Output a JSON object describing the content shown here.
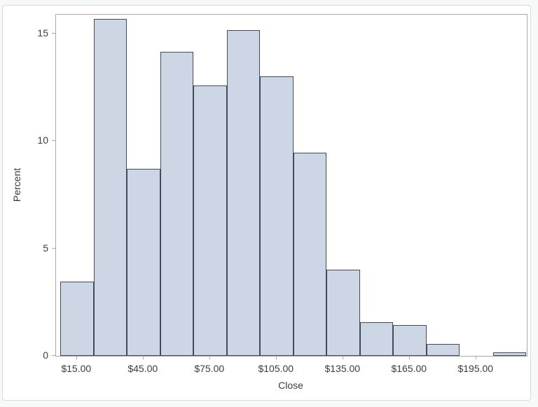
{
  "chart_data": {
    "type": "bar",
    "subtype": "histogram",
    "title": "",
    "xlabel": "Close",
    "ylabel": "Percent",
    "bin_width": 15,
    "bin_centers": [
      15,
      30,
      45,
      60,
      75,
      90,
      105,
      120,
      135,
      150,
      165,
      180,
      195,
      210
    ],
    "values": [
      3.45,
      15.7,
      8.7,
      14.15,
      12.6,
      15.15,
      13.0,
      9.45,
      4.0,
      1.55,
      1.45,
      0.55,
      0,
      0.15
    ],
    "x_tick_values": [
      15,
      45,
      75,
      105,
      135,
      165,
      195
    ],
    "x_tick_labels": [
      "$15.00",
      "$45.00",
      "$75.00",
      "$105.00",
      "$135.00",
      "$165.00",
      "$195.00"
    ],
    "y_tick_values": [
      0,
      5,
      10,
      15
    ],
    "y_tick_labels": [
      "0",
      "5",
      "10",
      "15"
    ],
    "xlim": [
      5.6,
      217.8
    ],
    "ylim": [
      0,
      15.88
    ],
    "grid": false,
    "legend": "none",
    "bar_fill": "#ccd6e5",
    "bar_border": "#414b59",
    "frame_color": "#a7abaf",
    "text_color": "#3a3d40"
  }
}
